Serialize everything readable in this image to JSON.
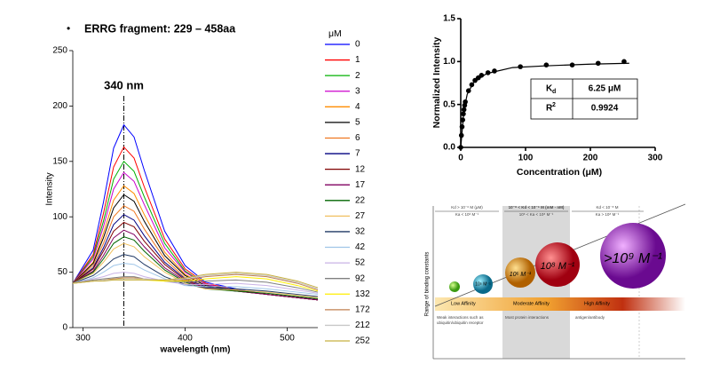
{
  "chart_data": [
    {
      "type": "line",
      "title": "ERRG fragment: 229 – 458aa",
      "x_label": "wavelength (nm)",
      "y_label": "Intensity",
      "legend_title": "μM",
      "annotation": {
        "text": "340 nm",
        "x": 340
      },
      "xlim": [
        290,
        530
      ],
      "xticks": [
        300,
        400,
        500
      ],
      "ylim": [
        0,
        250
      ],
      "yticks": [
        0,
        50,
        100,
        150,
        200,
        250
      ],
      "x": [
        290,
        310,
        320,
        330,
        340,
        350,
        360,
        380,
        400,
        420,
        450,
        480,
        510,
        530
      ],
      "series": [
        {
          "name": "0",
          "color": "#0000ff",
          "values": [
            40,
            70,
            113,
            162,
            183,
            172,
            142,
            87,
            56,
            41,
            35,
            30,
            27,
            25
          ]
        },
        {
          "name": "1",
          "color": "#ff0000",
          "values": [
            40,
            66,
            103,
            145,
            163,
            153,
            127,
            80,
            53,
            40,
            34,
            30,
            27,
            25
          ]
        },
        {
          "name": "2",
          "color": "#00b000",
          "values": [
            40,
            64,
            96,
            134,
            150,
            141,
            118,
            76,
            51,
            39,
            34,
            30,
            27,
            25
          ]
        },
        {
          "name": "3",
          "color": "#cc00cc",
          "values": [
            40,
            62,
            91,
            125,
            140,
            132,
            111,
            72,
            50,
            39,
            34,
            30,
            27,
            25
          ]
        },
        {
          "name": "4",
          "color": "#ff8c00",
          "values": [
            40,
            59,
            85,
            115,
            128,
            121,
            102,
            68,
            48,
            38,
            34,
            30,
            27,
            25
          ]
        },
        {
          "name": "5",
          "color": "#000000",
          "values": [
            40,
            58,
            81,
            108,
            120,
            114,
            96,
            65,
            47,
            38,
            34,
            30,
            27,
            25
          ]
        },
        {
          "name": "6",
          "color": "#f07820",
          "values": [
            40,
            56,
            76,
            100,
            110,
            105,
            89,
            62,
            45,
            37,
            33,
            30,
            27,
            25
          ]
        },
        {
          "name": "7",
          "color": "#000080",
          "values": [
            40,
            54,
            72,
            93,
            102,
            97,
            83,
            59,
            44,
            37,
            33,
            30,
            27,
            25
          ]
        },
        {
          "name": "12",
          "color": "#800000",
          "values": [
            40,
            53,
            69,
            87,
            95,
            91,
            78,
            57,
            43,
            36,
            33,
            30,
            27,
            25
          ]
        },
        {
          "name": "17",
          "color": "#800060",
          "values": [
            40,
            51,
            65,
            81,
            88,
            84,
            73,
            54,
            42,
            36,
            33,
            30,
            27,
            25
          ]
        },
        {
          "name": "22",
          "color": "#006400",
          "values": [
            40,
            50,
            62,
            76,
            82,
            79,
            69,
            52,
            41,
            35,
            33,
            31,
            28,
            26
          ]
        },
        {
          "name": "27",
          "color": "#f0c060",
          "values": [
            40,
            49,
            59,
            71,
            76,
            73,
            64,
            50,
            40,
            35,
            34,
            32,
            29,
            27
          ]
        },
        {
          "name": "32",
          "color": "#1f3864",
          "values": [
            40,
            47,
            54,
            62,
            66,
            64,
            57,
            46,
            39,
            36,
            35,
            33,
            30,
            28
          ]
        },
        {
          "name": "42",
          "color": "#9fc5e8",
          "values": [
            40,
            45,
            50,
            56,
            58,
            57,
            52,
            44,
            38,
            37,
            37,
            35,
            32,
            30
          ]
        },
        {
          "name": "52",
          "color": "#c9b3e6",
          "values": [
            40,
            44,
            46,
            49,
            50,
            49,
            46,
            42,
            39,
            39,
            40,
            38,
            34,
            31
          ]
        },
        {
          "name": "92",
          "color": "#808080",
          "values": [
            40,
            43,
            44,
            45,
            46,
            46,
            44,
            42,
            41,
            42,
            43,
            41,
            36,
            32
          ]
        },
        {
          "name": "132",
          "color": "#ffee00",
          "values": [
            40,
            42,
            43,
            44,
            44,
            44,
            43,
            42,
            42,
            44,
            46,
            44,
            38,
            33
          ]
        },
        {
          "name": "172",
          "color": "#c08050",
          "values": [
            40,
            42,
            43,
            44,
            45,
            45,
            44,
            43,
            43,
            46,
            48,
            46,
            40,
            34
          ]
        },
        {
          "name": "212",
          "color": "#c8c8c8",
          "values": [
            40,
            42,
            43,
            43,
            44,
            44,
            44,
            43,
            44,
            47,
            49,
            47,
            41,
            35
          ]
        },
        {
          "name": "252",
          "color": "#c8b040",
          "values": [
            40,
            42,
            42,
            43,
            43,
            43,
            43,
            43,
            45,
            48,
            50,
            48,
            42,
            36
          ]
        }
      ]
    },
    {
      "type": "scatter",
      "x_label": "Concentration (μM)",
      "y_label": "Normalized Intensity",
      "xlim": [
        0,
        300
      ],
      "xticks": [
        0,
        100,
        200,
        300
      ],
      "ylim": [
        0,
        1.5
      ],
      "yticks": [
        {
          "value": 0,
          "label": "0.0"
        },
        {
          "value": 0.5,
          "label": "0.5"
        },
        {
          "value": 1,
          "label": "1.0"
        },
        {
          "value": 1.5,
          "label": "1.5"
        }
      ],
      "series": [
        {
          "mode": "markers",
          "color": "#000000",
          "x": [
            0,
            1,
            2,
            3,
            4,
            5,
            6,
            7,
            12,
            17,
            22,
            27,
            32,
            42,
            52,
            92,
            132,
            172,
            212,
            252
          ],
          "values": [
            0,
            0.14,
            0.24,
            0.32,
            0.39,
            0.44,
            0.49,
            0.53,
            0.66,
            0.73,
            0.78,
            0.81,
            0.84,
            0.87,
            0.89,
            0.94,
            0.96,
            0.96,
            0.98,
            1.0
          ]
        },
        {
          "mode": "line",
          "color": "#000000",
          "x": [
            0,
            5,
            10,
            20,
            40,
            80,
            130,
            200,
            260
          ],
          "values": [
            0,
            0.44,
            0.62,
            0.76,
            0.86,
            0.93,
            0.95,
            0.97,
            0.98
          ]
        }
      ],
      "table": [
        {
          "label": "K",
          "sub": "d",
          "value": "6.25 μM"
        },
        {
          "label": "R",
          "sup": "2",
          "value": "0.9924"
        }
      ]
    }
  ],
  "diagram": {
    "y_label": "Range of binding constants",
    "headers": [
      {
        "kd": "Kd > 10⁻⁶ M (μM)",
        "ka": "Ka < 10⁶ M⁻¹"
      },
      {
        "kd": "10⁻⁸ < Kd < 10⁻⁶ M (mM - nM)",
        "ka": "10⁶ < Ka < 10⁸ M⁻¹"
      },
      {
        "kd": "Kd < 10⁻⁸ M",
        "ka": "Ka > 10⁸ M⁻¹"
      }
    ],
    "spheres": [
      "10⁵ M⁻¹",
      "10⁶ M⁻¹",
      "10⁸ M⁻¹",
      ">10⁹ M⁻¹"
    ],
    "bands": [
      "Low Affinity",
      "Moderate Affinity",
      "High Affinity"
    ],
    "notes": [
      "Weak interactions such as",
      "ubiquitin/ubiquitin receptor",
      "Most protein interactions",
      "antigen/antibody"
    ]
  }
}
